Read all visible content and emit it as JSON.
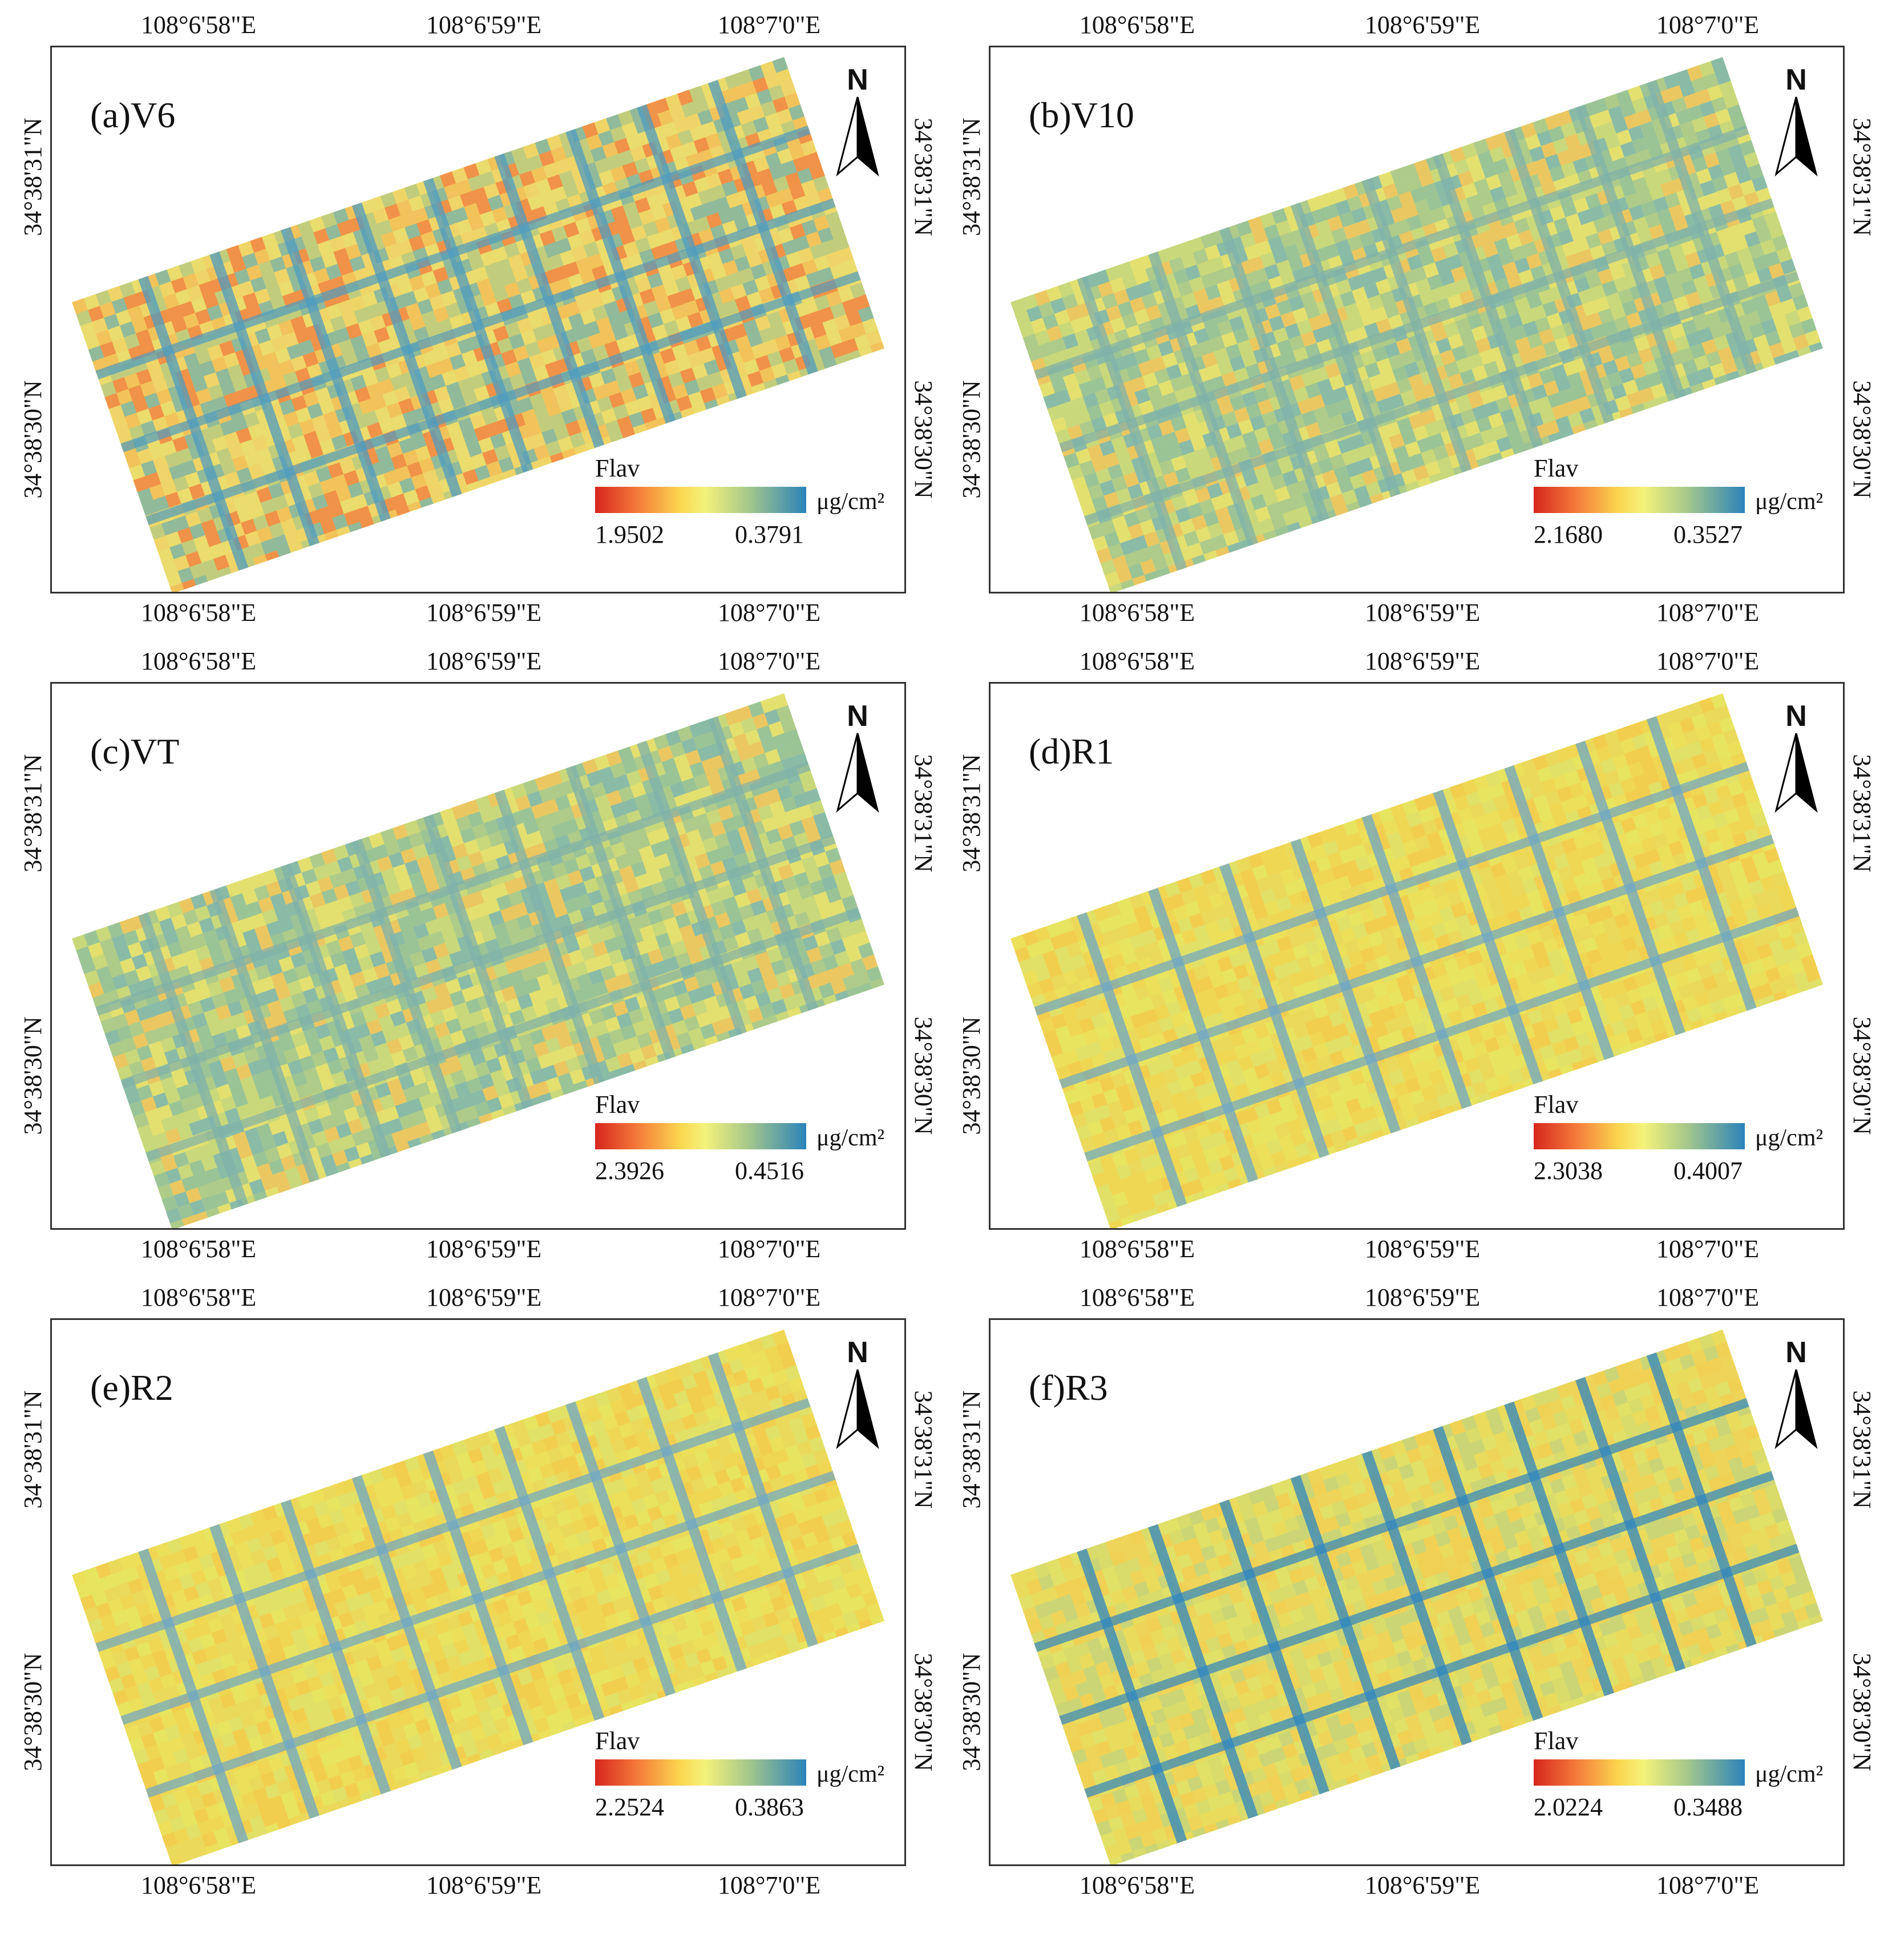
{
  "map": {
    "title_axis": {
      "lon_ticks": [
        "108°6'58\"E",
        "108°6'59\"E",
        "108°7'0\"E"
      ],
      "lat_ticks": [
        "34°38'31\"N",
        "34°38'30\"N"
      ]
    },
    "north_arrow": {
      "label": "N",
      "icon": "north-arrow-icon"
    },
    "legend_title": "Flav",
    "legend_unit": "μg/cm²",
    "colors": {
      "high": "#d7261e",
      "mid": "#f4f27a",
      "low": "#2b83ba"
    },
    "panels": [
      {
        "label": "(a)V6",
        "max": "1.9502",
        "min": "0.3791",
        "tone": "mixed-orange"
      },
      {
        "label": "(b)V10",
        "max": "2.1680",
        "min": "0.3527",
        "tone": "mixed-green"
      },
      {
        "label": "(c)VT",
        "max": "2.3926",
        "min": "0.4516",
        "tone": "mixed-green"
      },
      {
        "label": "(d)R1",
        "max": "2.3038",
        "min": "0.4007",
        "tone": "yellow"
      },
      {
        "label": "(e)R2",
        "max": "2.2524",
        "min": "0.3863",
        "tone": "yellow"
      },
      {
        "label": "(f)R3",
        "max": "2.0224",
        "min": "0.3488",
        "tone": "yellow-blue"
      }
    ]
  }
}
